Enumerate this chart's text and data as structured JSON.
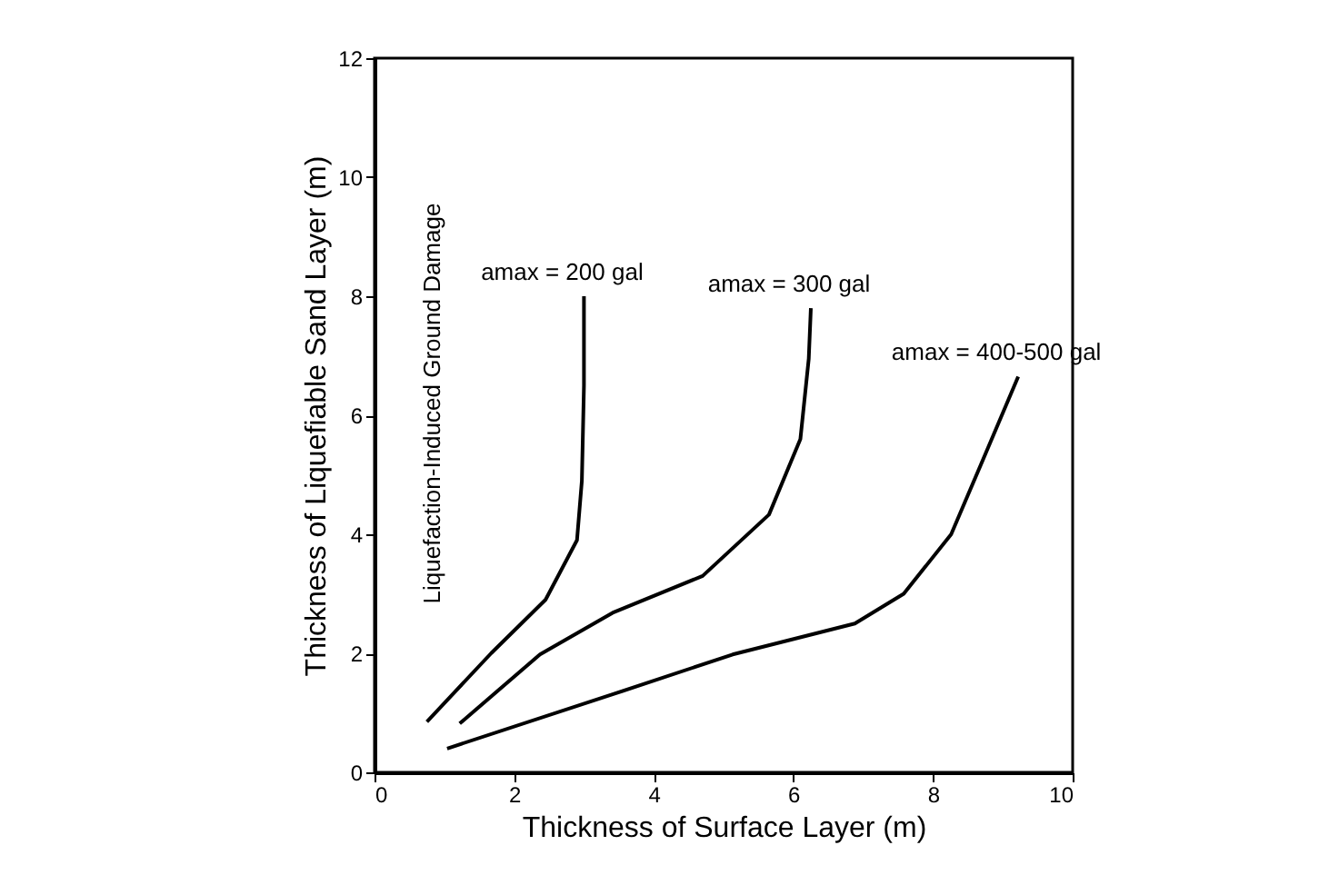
{
  "chart_data": {
    "type": "line",
    "xlabel": "Thickness of Surface Layer (m)",
    "ylabel": "Thickness of Liquefiable Sand Layer (m)",
    "xlim": [
      0,
      10
    ],
    "ylim": [
      0,
      12
    ],
    "xticks": [
      0,
      2,
      4,
      6,
      8,
      10
    ],
    "yticks": [
      0,
      2,
      4,
      6,
      8,
      10,
      12
    ],
    "grid": false,
    "legend": false,
    "marker": "none",
    "line_style": "solid",
    "series": [
      {
        "color": "#000000",
        "x": [
          0.75,
          1.67,
          2.45,
          2.9,
          2.97,
          3.0,
          3.0
        ],
        "values": [
          0.85,
          2.0,
          2.9,
          3.9,
          4.9,
          6.5,
          8.0
        ]
      },
      {
        "color": "#000000",
        "x": [
          1.22,
          2.37,
          3.41,
          4.7,
          5.65,
          6.1,
          6.22,
          6.25
        ],
        "values": [
          0.82,
          1.98,
          2.68,
          3.3,
          4.33,
          5.6,
          6.95,
          7.8
        ]
      },
      {
        "color": "#000000",
        "x": [
          1.04,
          3.41,
          5.13,
          6.88,
          7.58,
          8.26,
          8.78,
          9.22
        ],
        "values": [
          0.4,
          1.31,
          1.98,
          2.5,
          3.0,
          4.0,
          5.43,
          6.65
        ]
      }
    ],
    "annotations": [
      {
        "text": "amax = 200 gal",
        "x": 3.0,
        "y": 8.0
      },
      {
        "text": "amax = 300 gal",
        "x": 6.25,
        "y": 7.8
      },
      {
        "text": "amax = 400-500 gal",
        "x": 9.22,
        "y": 6.65
      },
      "Liquefaction-Induced Ground Damage"
    ]
  }
}
